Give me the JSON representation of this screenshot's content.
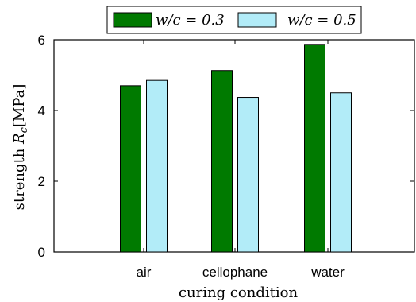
{
  "chart_data": {
    "type": "bar",
    "title": "",
    "categories": [
      "air",
      "cellophane",
      "water"
    ],
    "series": [
      {
        "name": "w/c = 0.3",
        "color": "#007a00",
        "values": [
          4.7,
          5.13,
          5.87
        ]
      },
      {
        "name": "w/c = 0.5",
        "color": "#b2ecf8",
        "values": [
          4.85,
          4.37,
          4.5
        ]
      }
    ],
    "xlabel": "curing condition",
    "ylabel": "strength R_c[MPa]",
    "ylabel_parts": {
      "prefix": "strength ",
      "symbol": "R",
      "subscript": "c",
      "unit": "[MPa]"
    },
    "ylim": [
      0,
      6
    ],
    "yticks": [
      "0",
      "2",
      "4",
      "6"
    ],
    "grid": false,
    "legend_position": "top-center"
  }
}
